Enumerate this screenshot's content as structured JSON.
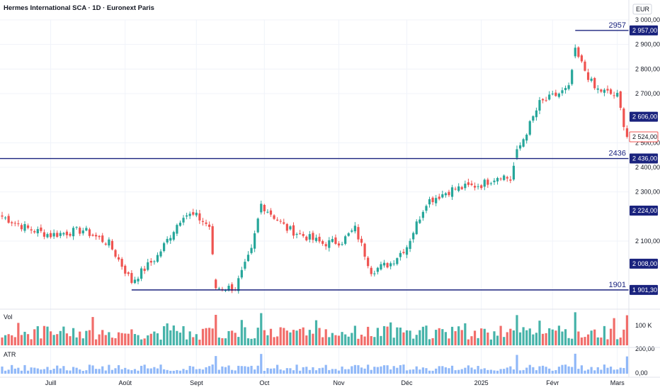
{
  "header": {
    "title": "Hermes International SCA · 1D · Euronext Paris"
  },
  "currency_label": "EUR",
  "colors": {
    "up": "#26a69a",
    "down": "#ef5350",
    "line": "#1a237e",
    "vol_up": "#26a69a",
    "vol_down": "#ef5350",
    "atr": "#90b8f8",
    "grid": "#f0f3fa",
    "text": "#131722"
  },
  "levels": [
    {
      "value": 2957,
      "label": "2957",
      "axis_label": "2 957,00",
      "from_date": "2025-02-12"
    },
    {
      "value": 2436,
      "label": "2436",
      "axis_label": "2 436,00",
      "from_date": "2024-06-10"
    },
    {
      "value": 1901.3,
      "label": "1901",
      "axis_label": "1 901,30",
      "from_date": "2024-08-05"
    }
  ],
  "badges": [
    {
      "value": 2606,
      "text": "2 606,00",
      "style": "dark"
    },
    {
      "value": 2524,
      "text": "2 524,00",
      "style": "last"
    },
    {
      "value": 2224,
      "text": "2 224,00",
      "style": "dark"
    },
    {
      "value": 2008,
      "text": "2 008,00",
      "style": "dark"
    }
  ],
  "panes": {
    "volume_label": "Vol",
    "volume_tick": "100 K",
    "atr_label": "ATR",
    "atr_ticks": [
      "200,00",
      "0,00"
    ]
  },
  "x_labels": [
    "Juill",
    "Août",
    "Sept",
    "Oct",
    "Nov",
    "Déc",
    "2025",
    "Févr",
    "Mars"
  ],
  "chart_data": {
    "type": "candlestick",
    "title": "Hermes International SCA · 1D · Euronext Paris",
    "y_axis": {
      "unit": "EUR",
      "ylim": [
        1860,
        3020
      ],
      "ticks": [
        {
          "value": 3000,
          "label": "3 000,00"
        },
        {
          "value": 2900,
          "label": "2 900,00"
        },
        {
          "value": 2800,
          "label": "2 800,00"
        },
        {
          "value": 2700,
          "label": "2 700,00"
        },
        {
          "value": 2500,
          "label": "2 500,00"
        },
        {
          "value": 2400,
          "label": "2 400,00"
        },
        {
          "value": 2300,
          "label": "2 300,00"
        },
        {
          "value": 2100,
          "label": "2 100,00"
        }
      ]
    },
    "x_axis": {
      "labels": [
        "Juill",
        "Août",
        "Sept",
        "Oct",
        "Nov",
        "Déc",
        "2025",
        "Févr",
        "Mars"
      ]
    },
    "grid": true,
    "close_anchors": [
      {
        "date": "2024-06-10",
        "close": 2200
      },
      {
        "date": "2024-06-20",
        "close": 2150
      },
      {
        "date": "2024-07-01",
        "close": 2125
      },
      {
        "date": "2024-07-15",
        "close": 2145
      },
      {
        "date": "2024-07-25",
        "close": 2090
      },
      {
        "date": "2024-08-05",
        "close": 1935
      },
      {
        "date": "2024-08-15",
        "close": 2040
      },
      {
        "date": "2024-08-27",
        "close": 2210
      },
      {
        "date": "2024-09-02",
        "close": 2200
      },
      {
        "date": "2024-09-06",
        "close": 2160
      },
      {
        "date": "2024-09-10",
        "close": 1910
      },
      {
        "date": "2024-09-18",
        "close": 1910
      },
      {
        "date": "2024-09-25",
        "close": 2060
      },
      {
        "date": "2024-09-30",
        "close": 2250
      },
      {
        "date": "2024-10-10",
        "close": 2150
      },
      {
        "date": "2024-10-25",
        "close": 2090
      },
      {
        "date": "2024-11-04",
        "close": 2100
      },
      {
        "date": "2024-11-08",
        "close": 2150
      },
      {
        "date": "2024-11-15",
        "close": 1980
      },
      {
        "date": "2024-11-25",
        "close": 2010
      },
      {
        "date": "2024-12-02",
        "close": 2080
      },
      {
        "date": "2024-12-10",
        "close": 2260
      },
      {
        "date": "2024-12-20",
        "close": 2310
      },
      {
        "date": "2025-01-02",
        "close": 2330
      },
      {
        "date": "2025-01-10",
        "close": 2370
      },
      {
        "date": "2025-01-15",
        "close": 2350
      },
      {
        "date": "2025-01-17",
        "close": 2460
      },
      {
        "date": "2025-01-28",
        "close": 2660
      },
      {
        "date": "2025-02-10",
        "close": 2720
      },
      {
        "date": "2025-02-12",
        "close": 2870
      },
      {
        "date": "2025-02-20",
        "close": 2720
      },
      {
        "date": "2025-03-03",
        "close": 2690
      },
      {
        "date": "2025-03-06",
        "close": 2524
      }
    ],
    "series": [
      {
        "name": "Vol",
        "type": "bar",
        "tick_label": "100 K"
      },
      {
        "name": "ATR",
        "type": "bar",
        "tick_labels": [
          "200,00",
          "0,00"
        ]
      }
    ]
  }
}
